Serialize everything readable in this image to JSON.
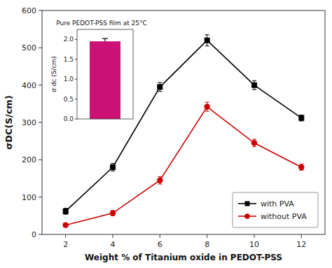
{
  "chart_data": [
    {
      "type": "line",
      "x": [
        2,
        4,
        6,
        8,
        10,
        12
      ],
      "xlabel": "Weight % of Titanium oxide  in PEDOT-PSS",
      "ylabel": "σDC(S/cm)",
      "xlim": [
        1,
        13
      ],
      "ylim": [
        0,
        600
      ],
      "xticks": [
        2,
        4,
        6,
        8,
        10,
        12
      ],
      "yticks": [
        0,
        100,
        200,
        300,
        400,
        500,
        600
      ],
      "legend": "lower right",
      "grid": false,
      "series": [
        {
          "name": "with PVA",
          "color": "#000000",
          "marker": "square",
          "values": [
            62,
            180,
            395,
            520,
            400,
            312
          ],
          "errors": [
            8,
            10,
            12,
            15,
            12,
            8
          ]
        },
        {
          "name": "without PVA",
          "color": "#cc0000",
          "marker": "circle",
          "values": [
            25,
            57,
            145,
            342,
            245,
            180
          ],
          "errors": [
            5,
            7,
            10,
            12,
            10,
            8
          ]
        }
      ]
    },
    {
      "type": "bar",
      "title": "Pure PEDOT-PSS film at  25°C",
      "ylabel": "σ dc (S/cm)",
      "categories": [
        null
      ],
      "values": [
        1.95
      ],
      "errors_upper": [
        0.07
      ],
      "color": "#cc1177",
      "ylim": [
        0.0,
        2.25
      ],
      "yticks": [
        {
          "value": 0.0,
          "label": "0.0"
        },
        0.5,
        {
          "value": 1.0,
          "label": "1.0"
        },
        1.5,
        {
          "value": 2.0,
          "label": "2.0"
        }
      ],
      "tick_labels": "y",
      "grid": false
    }
  ]
}
